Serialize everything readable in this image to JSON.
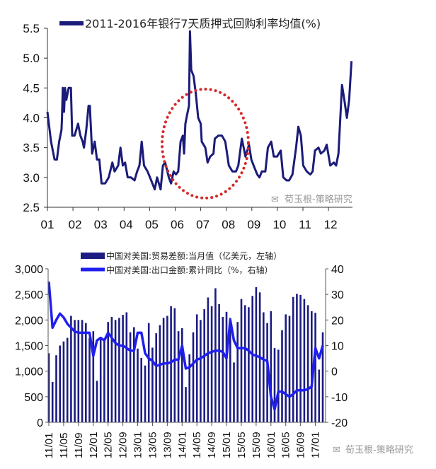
{
  "chart_data": [
    {
      "type": "line",
      "legend": "2011-2016年银行7天质押式回购利率均值(%)",
      "legend_placement": "top",
      "ylim": [
        2.5,
        5.5
      ],
      "yticks": [
        "5.5",
        "5.0",
        "4.5",
        "4.0",
        "3.5",
        "3.0",
        "2.5"
      ],
      "yticks_values": [
        5.5,
        5.0,
        4.5,
        4.0,
        3.5,
        3.0,
        2.5
      ],
      "xticks": [
        "01",
        "02",
        "03",
        "04",
        "05",
        "06",
        "07",
        "08",
        "09",
        "10",
        "11",
        "12"
      ],
      "xlim": [
        1,
        12.9
      ],
      "grid": false,
      "line_color": "#1b1b7a",
      "annotation": {
        "shape": "dotted-ellipse",
        "color": "#d42a2a",
        "around_x": [
          5.6,
          8.9
        ]
      },
      "x": [
        1.0,
        1.14,
        1.28,
        1.37,
        1.46,
        1.55,
        1.57,
        1.6,
        1.65,
        1.69,
        1.74,
        1.83,
        1.92,
        1.97,
        2.06,
        2.2,
        2.29,
        2.38,
        2.43,
        2.52,
        2.61,
        2.66,
        2.75,
        2.85,
        2.94,
        3.03,
        3.12,
        3.26,
        3.4,
        3.54,
        3.63,
        3.77,
        3.86,
        3.95,
        4.04,
        4.14,
        4.27,
        4.41,
        4.51,
        4.6,
        4.69,
        4.78,
        4.92,
        5.06,
        5.2,
        5.29,
        5.43,
        5.52,
        5.61,
        5.75,
        5.84,
        5.94,
        6.03,
        6.12,
        6.21,
        6.3,
        6.35,
        6.4,
        6.49,
        6.54,
        6.58,
        6.63,
        6.72,
        6.81,
        6.9,
        7.0,
        7.04,
        7.18,
        7.27,
        7.37,
        7.5,
        7.55,
        7.69,
        7.83,
        7.96,
        8.1,
        8.24,
        8.38,
        8.47,
        8.61,
        8.75,
        8.89,
        8.98,
        9.07,
        9.21,
        9.3,
        9.39,
        9.53,
        9.63,
        9.76,
        9.86,
        9.99,
        10.13,
        10.23,
        10.36,
        10.46,
        10.59,
        10.73,
        10.82,
        10.92,
        11.01,
        11.15,
        11.29,
        11.38,
        11.47,
        11.61,
        11.7,
        11.84,
        11.93,
        12.07,
        12.21,
        12.3,
        12.39,
        12.53,
        12.62,
        12.72,
        12.81,
        12.9
      ],
      "y": [
        4.1,
        3.6,
        3.3,
        3.3,
        3.6,
        3.8,
        4.0,
        4.5,
        4.1,
        4.5,
        4.3,
        4.5,
        4.5,
        3.7,
        3.7,
        3.9,
        3.7,
        3.6,
        3.5,
        3.8,
        4.2,
        4.2,
        3.4,
        3.6,
        3.3,
        3.3,
        2.9,
        2.9,
        3.0,
        3.25,
        3.1,
        3.2,
        3.5,
        3.2,
        3.25,
        3.0,
        3.0,
        2.95,
        3.1,
        3.2,
        3.6,
        3.2,
        3.1,
        2.95,
        2.8,
        3.0,
        2.8,
        3.2,
        3.25,
        3.0,
        2.9,
        3.1,
        3.05,
        3.1,
        3.6,
        3.7,
        3.4,
        3.9,
        4.1,
        4.2,
        5.45,
        4.8,
        4.7,
        4.4,
        4.0,
        3.9,
        3.6,
        3.5,
        3.25,
        3.35,
        3.4,
        3.65,
        3.7,
        3.7,
        3.6,
        3.2,
        3.1,
        3.1,
        3.2,
        3.65,
        3.35,
        3.55,
        3.3,
        3.2,
        3.05,
        3.0,
        3.1,
        3.1,
        3.5,
        3.6,
        3.35,
        3.35,
        3.45,
        3.0,
        2.95,
        2.95,
        3.05,
        3.5,
        3.85,
        3.7,
        3.2,
        3.1,
        3.05,
        3.1,
        3.45,
        3.5,
        3.4,
        3.45,
        3.55,
        3.2,
        3.25,
        3.2,
        3.4,
        4.55,
        4.3,
        4.0,
        4.3,
        4.95
      ]
    },
    {
      "type": "bar+line",
      "x_start": "11/01",
      "x_end": "17/03",
      "xticks": [
        "11/01",
        "11/05",
        "11/09",
        "12/01",
        "12/05",
        "12/09",
        "13/01",
        "13/05",
        "13/09",
        "14/01",
        "14/05",
        "14/09",
        "15/01",
        "15/05",
        "15/09",
        "16/01",
        "16/05",
        "16/09",
        "17/01"
      ],
      "y_left": {
        "lim": [
          0,
          3000
        ],
        "ticks": [
          "3,000",
          "2,500",
          "2,000",
          "1,500",
          "1,000",
          "500",
          "0"
        ],
        "values": [
          3000,
          2500,
          2000,
          1500,
          1000,
          500,
          0
        ]
      },
      "y_right": {
        "lim": [
          -20,
          40
        ],
        "ticks": [
          "40",
          "30",
          "20",
          "10",
          "0",
          "-10",
          "-20"
        ],
        "values": [
          40,
          30,
          20,
          10,
          0,
          -10,
          -20
        ]
      },
      "legend_placement": "top",
      "grid": false,
      "series": [
        {
          "name": "中国对美国:贸易差额:当月值（亿美元，左轴）",
          "kind": "bar",
          "axis": "left",
          "color": "#1c1c82",
          "values": [
            1350,
            790,
            1310,
            1500,
            1580,
            1650,
            2080,
            2000,
            2000,
            2000,
            1940,
            1650,
            1780,
            810,
            1650,
            1600,
            1960,
            2060,
            2000,
            2040,
            2100,
            2150,
            1760,
            1860,
            1440,
            1260,
            1110,
            1940,
            1460,
            1740,
            1900,
            2040,
            2080,
            2270,
            2230,
            1780,
            1840,
            690,
            1330,
            1760,
            2110,
            2000,
            2210,
            2440,
            2270,
            2620,
            2310,
            2060,
            2160,
            2040,
            1170,
            1960,
            2410,
            2290,
            2250,
            2470,
            2640,
            2540,
            2150,
            1940,
            2170,
            1450,
            1420,
            1800,
            2110,
            2080,
            2450,
            2510,
            2490,
            2410,
            2290,
            2170,
            2140,
            1030,
            1760
          ]
        },
        {
          "name": "中国对美国:出口金额:累计同比（%，右轴）",
          "kind": "line",
          "axis": "right",
          "color": "#1f1ff0",
          "values": [
            35,
            17,
            20,
            22.5,
            21,
            18.5,
            17,
            15.5,
            15,
            15,
            15,
            15,
            6,
            12,
            13,
            12,
            15,
            13,
            11,
            10,
            10,
            9,
            8,
            8,
            15,
            15,
            7,
            5,
            4,
            2,
            2.5,
            3,
            3,
            3.5,
            4.5,
            4.5,
            10,
            1,
            1.5,
            3,
            4.5,
            5,
            6,
            7,
            7.5,
            8,
            8,
            7.5,
            5,
            20,
            12,
            9,
            9,
            9,
            8,
            6.5,
            6,
            5.5,
            4.5,
            4,
            -10,
            -15,
            -8,
            -8,
            -9,
            -10,
            -9,
            -7.5,
            -7.5,
            -7.5,
            -7,
            -6,
            9,
            5,
            10
          ]
        }
      ]
    }
  ],
  "watermark": {
    "text": "荀玉根-策略研究",
    "icon": "wechat-icon"
  }
}
